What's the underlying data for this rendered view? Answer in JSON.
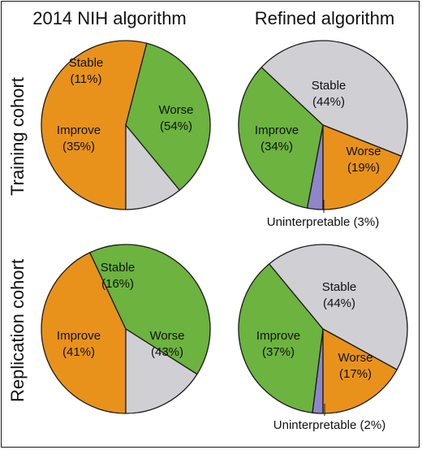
{
  "columns": [
    "2014 NIH algorithm",
    "Refined algorithm"
  ],
  "rows": [
    "Training cohort",
    "Replication cohort"
  ],
  "colors": {
    "Improve": "#6cb33f",
    "Worse": "#e8921b",
    "Stable": "#cfcfd4",
    "Uninterpretable": "#8e86c9"
  },
  "chart_data": [
    {
      "type": "pie",
      "column": "2014 NIH algorithm",
      "row": "Training cohort",
      "slices": [
        {
          "label": "Worse",
          "percent_label": "(54%)",
          "value": 54
        },
        {
          "label": "Improve",
          "percent_label": "(35%)",
          "value": 35
        },
        {
          "label": "Stable",
          "percent_label": "(11%)",
          "value": 11
        }
      ]
    },
    {
      "type": "pie",
      "column": "Refined algorithm",
      "row": "Training cohort",
      "slices": [
        {
          "label": "Uninterpretable",
          "percent_label": "(3%)",
          "value": 3
        },
        {
          "label": "Improve",
          "percent_label": "(34%)",
          "value": 34
        },
        {
          "label": "Stable",
          "percent_label": "(44%)",
          "value": 44
        },
        {
          "label": "Worse",
          "percent_label": "(19%)",
          "value": 19
        }
      ]
    },
    {
      "type": "pie",
      "column": "2014 NIH algorithm",
      "row": "Replication cohort",
      "slices": [
        {
          "label": "Worse",
          "percent_label": "(43%)",
          "value": 43
        },
        {
          "label": "Improve",
          "percent_label": "(41%)",
          "value": 41
        },
        {
          "label": "Stable",
          "percent_label": "(16%)",
          "value": 16
        }
      ]
    },
    {
      "type": "pie",
      "column": "Refined algorithm",
      "row": "Replication cohort",
      "slices": [
        {
          "label": "Uninterpretable",
          "percent_label": "(2%)",
          "value": 2
        },
        {
          "label": "Improve",
          "percent_label": "(37%)",
          "value": 37
        },
        {
          "label": "Stable",
          "percent_label": "(44%)",
          "value": 44
        },
        {
          "label": "Worse",
          "percent_label": "(17%)",
          "value": 17
        }
      ]
    }
  ]
}
